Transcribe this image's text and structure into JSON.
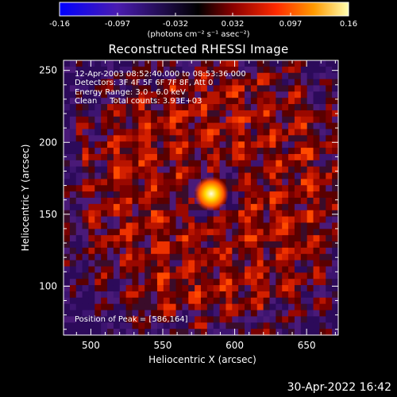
{
  "colorbar": {
    "ticks": [
      "-0.16",
      "-0.097",
      "-0.032",
      "0.032",
      "0.097",
      "0.16"
    ],
    "units_label": "(photons cm⁻² s⁻¹ asec⁻²)",
    "colors": [
      "#0000ff",
      "#5a1aa0",
      "#000000",
      "#8a0000",
      "#ff2a00",
      "#ff9a00",
      "#ffffa0"
    ]
  },
  "plot": {
    "title": "Reconstructed RHESSI Image",
    "info": {
      "time_range": "12-Apr-2003 08:52:40.000 to 08:53:36.000",
      "detectors": "Detectors: 3F 4F 5F 6F 7F 8F, Att 0",
      "energy": "Energy Range: 3.0 - 6.0 keV",
      "method": "Clean     Total counts: 3.93E+03"
    },
    "peak_text": "Position of Peak = [586,164]",
    "xlabel": "Heliocentric X (arcsec)",
    "ylabel": "Heliocentric Y (arcsec)"
  },
  "chart_data": {
    "type": "heatmap",
    "title": "Reconstructed RHESSI Image",
    "xlabel": "Heliocentric X (arcsec)",
    "ylabel": "Heliocentric Y (arcsec)",
    "xlim": [
      481,
      672
    ],
    "ylim": [
      66,
      257
    ],
    "xticks": [
      500,
      550,
      600,
      650
    ],
    "yticks": [
      100,
      150,
      200,
      250
    ],
    "color_range": [
      -0.16,
      0.16
    ],
    "peak": {
      "x": 586,
      "y": 164
    }
  },
  "footer": {
    "timestamp": "30-Apr-2022 16:42"
  }
}
